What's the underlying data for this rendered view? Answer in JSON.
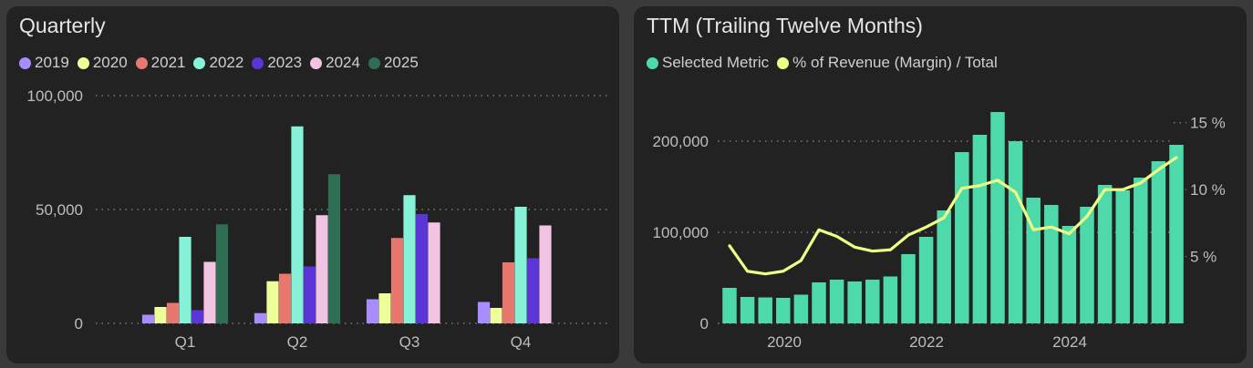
{
  "chart_data": [
    {
      "type": "bar",
      "title": "Quarterly",
      "categories": [
        "Q1",
        "Q2",
        "Q3",
        "Q4"
      ],
      "ylim": [
        0,
        100000
      ],
      "yticks": [
        "0",
        "50,000",
        "100,000"
      ],
      "ytick_values": [
        0,
        50000,
        100000
      ],
      "grid": true,
      "legend_position": "top-left",
      "series": [
        {
          "name": "2019",
          "color": "#a98cff",
          "values": [
            3800,
            4500,
            10600,
            9400
          ]
        },
        {
          "name": "2020",
          "color": "#eeff99",
          "values": [
            7200,
            18500,
            13200,
            6800
          ]
        },
        {
          "name": "2021",
          "color": "#e8786f",
          "values": [
            9000,
            21800,
            37500,
            26800
          ]
        },
        {
          "name": "2022",
          "color": "#86f2d8",
          "values": [
            38000,
            86500,
            56300,
            51200
          ]
        },
        {
          "name": "2023",
          "color": "#5b35d5",
          "values": [
            5800,
            25000,
            48000,
            28600
          ]
        },
        {
          "name": "2024",
          "color": "#f2c4e2",
          "values": [
            27000,
            47500,
            44300,
            43000
          ]
        },
        {
          "name": "2025",
          "color": "#2e6e55",
          "values": [
            43500,
            65500,
            null,
            null
          ]
        }
      ]
    },
    {
      "type": "bar",
      "title": "TTM (Trailing Twelve Months)",
      "x_ticks": [
        "2020",
        "2022",
        "2024"
      ],
      "ylim": [
        0,
        230000
      ],
      "yticks": [
        "0",
        "100,000",
        "200,000"
      ],
      "ytick_values": [
        0,
        100000,
        200000
      ],
      "y2lim": [
        0,
        15.8
      ],
      "y2ticks": [
        "5 %",
        "10 %",
        "15 %"
      ],
      "y2tick_values": [
        5,
        10,
        15
      ],
      "grid": true,
      "legend_position": "top-left",
      "series": [
        {
          "name": "Selected Metric",
          "type": "bar",
          "color": "#4dd9aa",
          "values": [
            39000,
            29000,
            28500,
            28000,
            31500,
            45000,
            48000,
            46000,
            48000,
            51500,
            76000,
            95000,
            124000,
            188000,
            207000,
            232000,
            200000,
            138000,
            130000,
            107000,
            128000,
            152000,
            146000,
            160000,
            178000,
            196000
          ]
        },
        {
          "name": "% of Revenue (Margin) / Total",
          "type": "line",
          "color": "#eeff88",
          "values": [
            5.8,
            3.9,
            3.7,
            3.9,
            4.7,
            7.0,
            6.5,
            5.7,
            5.4,
            5.5,
            6.6,
            7.2,
            7.9,
            10.1,
            10.3,
            10.7,
            9.8,
            7.0,
            7.2,
            6.7,
            8.0,
            10.0,
            10.0,
            10.5,
            11.5,
            12.4
          ]
        }
      ]
    }
  ]
}
